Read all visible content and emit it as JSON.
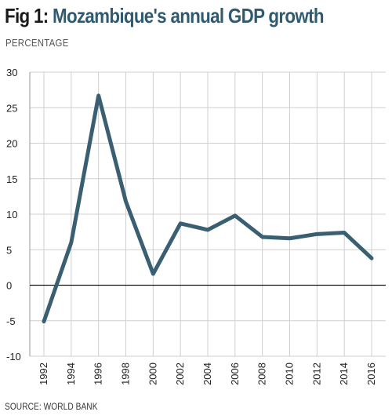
{
  "title": {
    "prefix": "Fig 1:",
    "main": "Mozambique's annual GDP growth"
  },
  "subtitle": "PERCENTAGE",
  "source": "SOURCE: WORLD BANK",
  "colors": {
    "line": "#3b5f72",
    "title_accent": "#2f5a70",
    "grid": "#cfcfcf",
    "zero_line": "#1a1a1a"
  },
  "chart_data": {
    "type": "line",
    "title": "Mozambique's annual GDP growth",
    "ylabel": "PERCENTAGE",
    "xlabel": "",
    "ylim": [
      -10,
      30
    ],
    "xlim": [
      1992,
      2016
    ],
    "yticks": [
      30,
      25,
      20,
      15,
      10,
      5,
      0,
      -5,
      -10
    ],
    "xticks": [
      1992,
      1994,
      1996,
      1998,
      2000,
      2002,
      2004,
      2006,
      2008,
      2010,
      2012,
      2014,
      2016
    ],
    "grid": true,
    "legend": "none",
    "series": [
      {
        "x": [
          1992,
          1994,
          1996,
          1998,
          2000,
          2002,
          2004,
          2006,
          2008,
          2010,
          2012,
          2014,
          2016
        ],
        "values": [
          -5.1,
          6.0,
          26.7,
          11.8,
          1.6,
          8.7,
          7.8,
          9.8,
          6.8,
          6.6,
          7.2,
          7.4,
          3.8
        ]
      }
    ]
  }
}
